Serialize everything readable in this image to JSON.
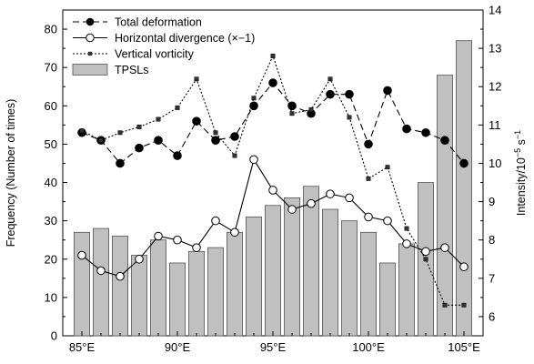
{
  "chart_data": {
    "type": "bar",
    "x_ticks": [
      "85°E",
      "90°E",
      "95°E",
      "100°E",
      "105°E"
    ],
    "x_tick_values": [
      85,
      90,
      95,
      100,
      105
    ],
    "xlim": [
      84,
      106
    ],
    "ylabel_left": "Frequency (Number of times)",
    "ylabel_right_prefix": "Intensity/10",
    "ylabel_right_exp1": "−5",
    "ylabel_right_mid": " s",
    "ylabel_right_exp2": "−1",
    "ylim_left": [
      0,
      85
    ],
    "left_ticks": [
      0,
      10,
      20,
      30,
      40,
      50,
      60,
      70,
      80
    ],
    "ylim_right": [
      5.5,
      14
    ],
    "right_ticks": [
      6,
      7,
      8,
      9,
      10,
      11,
      12,
      13,
      14
    ],
    "legend": [
      {
        "name": "Total deformation",
        "style": "dashed-filled-circle"
      },
      {
        "name": "Horizontal divergence (×−1)",
        "style": "solid-open-circle"
      },
      {
        "name": "Vertical vorticity",
        "style": "dotted-square"
      },
      {
        "name": "TPSLs",
        "style": "bar"
      }
    ],
    "bars": {
      "name": "TPSLs",
      "x": [
        85,
        86,
        87,
        88,
        89,
        90,
        91,
        92,
        93,
        94,
        95,
        96,
        97,
        98,
        99,
        100,
        101,
        102,
        103,
        104,
        105
      ],
      "values": [
        27,
        28,
        26,
        21,
        25,
        19,
        22,
        23,
        27,
        31,
        34,
        36,
        39,
        33,
        30,
        27,
        19,
        24,
        40,
        68,
        77
      ]
    },
    "series": [
      {
        "name": "Total deformation",
        "axis": "right",
        "x": [
          85,
          86,
          87,
          88,
          89,
          90,
          91,
          92,
          93,
          94,
          95,
          96,
          97,
          98,
          99,
          100,
          101,
          102,
          103,
          104,
          105
        ],
        "values": [
          10.8,
          10.6,
          10.0,
          10.4,
          10.6,
          10.2,
          11.1,
          10.6,
          10.7,
          11.5,
          12.1,
          11.5,
          11.3,
          11.8,
          11.8,
          10.5,
          11.9,
          10.9,
          10.8,
          10.6,
          10.0
        ]
      },
      {
        "name": "Horizontal divergence (×−1)",
        "axis": "right",
        "x": [
          85,
          86,
          87,
          88,
          89,
          90,
          91,
          92,
          93,
          94,
          95,
          96,
          97,
          98,
          99,
          100,
          101,
          102,
          103,
          104,
          105
        ],
        "values": [
          7.6,
          7.2,
          7.05,
          7.5,
          8.1,
          8.0,
          7.8,
          8.5,
          8.2,
          10.1,
          9.3,
          8.8,
          8.95,
          9.2,
          9.1,
          8.6,
          8.5,
          7.9,
          7.7,
          7.8,
          7.3
        ]
      },
      {
        "name": "Vertical vorticity",
        "axis": "right",
        "x": [
          85,
          86,
          87,
          88,
          89,
          90,
          91,
          92,
          93,
          94,
          95,
          96,
          97,
          98,
          99,
          100,
          101,
          102,
          103,
          104,
          105
        ],
        "values": [
          10.85,
          10.6,
          10.8,
          10.95,
          11.15,
          11.45,
          12.2,
          10.8,
          10.2,
          11.7,
          12.8,
          11.3,
          11.4,
          12.2,
          11.2,
          9.6,
          9.9,
          8.3,
          7.5,
          6.3,
          6.3
        ]
      }
    ],
    "colors": {
      "bar_fill": "#c0c0c0",
      "bar_stroke": "#555555",
      "line": "#000000"
    }
  }
}
